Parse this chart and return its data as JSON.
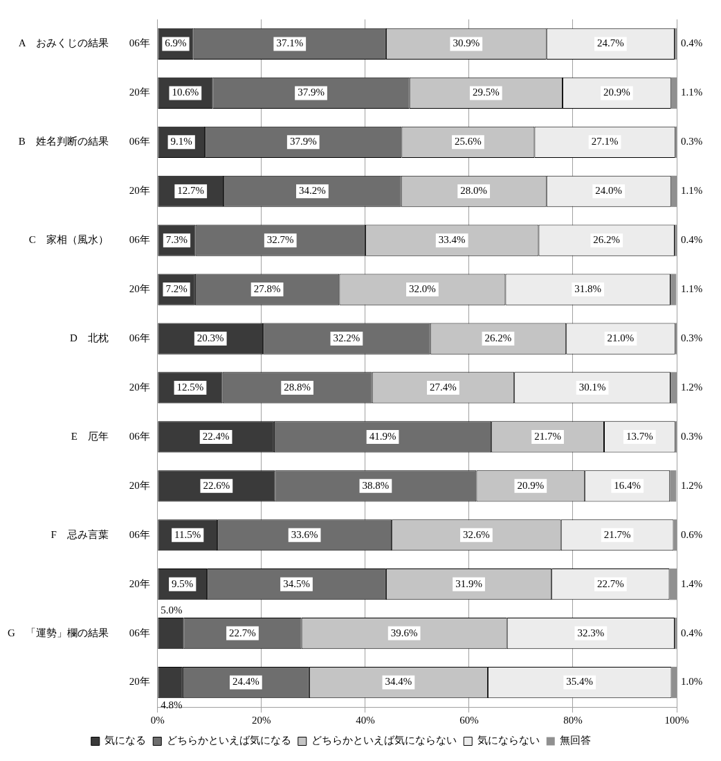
{
  "chart_data": {
    "type": "bar",
    "orientation": "horizontal",
    "stacked": true,
    "categories": [
      "A　おみくじの結果　　06年",
      "20年",
      "B　姓名判断の結果　　06年",
      "20年",
      "C　家相（風水）　　06年",
      "20年",
      "D　北枕　　06年",
      "20年",
      "E　厄年　　06年",
      "20年",
      "F　忌み言葉　　06年",
      "20年",
      "G　「運勢」欄の結果　　06年",
      "20年"
    ],
    "series": [
      {
        "name": "気になる",
        "color": "#3a3a3a",
        "values": [
          6.9,
          10.6,
          9.1,
          12.7,
          7.3,
          7.2,
          20.3,
          12.5,
          22.4,
          22.6,
          11.5,
          9.5,
          5.0,
          4.8
        ],
        "value_labels": [
          "6.9%",
          "10.6%",
          "9.1%",
          "12.7%",
          "7.3%",
          "7.2%",
          "20.3%",
          "12.5%",
          "22.4%",
          "22.6%",
          "11.5%",
          "9.5%",
          "5.0%",
          "4.8%"
        ]
      },
      {
        "name": "どちらかといえば気になる",
        "color": "#6e6e6e",
        "values": [
          37.1,
          37.9,
          37.9,
          34.2,
          32.7,
          27.8,
          32.2,
          28.8,
          41.9,
          38.8,
          33.6,
          34.5,
          22.7,
          24.4
        ],
        "value_labels": [
          "37.1%",
          "37.9%",
          "37.9%",
          "34.2%",
          "32.7%",
          "27.8%",
          "32.2%",
          "28.8%",
          "41.9%",
          "38.8%",
          "33.6%",
          "34.5%",
          "22.7%",
          "24.4%"
        ]
      },
      {
        "name": "どちらかといえば気にならない",
        "color": "#c4c4c4",
        "values": [
          30.9,
          29.5,
          25.6,
          28.0,
          33.4,
          32.0,
          26.2,
          27.4,
          21.7,
          20.9,
          32.6,
          31.9,
          39.6,
          34.4
        ],
        "value_labels": [
          "30.9%",
          "29.5%",
          "25.6%",
          "28.0%",
          "33.4%",
          "32.0%",
          "26.2%",
          "27.4%",
          "21.7%",
          "20.9%",
          "32.6%",
          "31.9%",
          "39.6%",
          "34.4%"
        ]
      },
      {
        "name": "気にならない",
        "color": "#ececec",
        "values": [
          24.7,
          20.9,
          27.1,
          24.0,
          26.2,
          31.8,
          21.0,
          30.1,
          13.7,
          16.4,
          21.7,
          22.7,
          32.3,
          35.4
        ],
        "value_labels": [
          "24.7%",
          "20.9%",
          "27.1%",
          "24.0%",
          "26.2%",
          "31.8%",
          "21.0%",
          "30.1%",
          "13.7%",
          "16.4%",
          "21.7%",
          "22.7%",
          "32.3%",
          "35.4%"
        ]
      },
      {
        "name": "無回答",
        "color": "#909090",
        "values": [
          0.4,
          1.1,
          0.3,
          1.1,
          0.4,
          1.1,
          0.3,
          1.2,
          0.3,
          1.2,
          0.6,
          1.4,
          0.4,
          1.0
        ],
        "value_labels": [
          "0.4%",
          "1.1%",
          "0.3%",
          "1.1%",
          "0.4%",
          "1.1%",
          "0.3%",
          "1.2%",
          "0.3%",
          "1.2%",
          "0.6%",
          "1.4%",
          "0.4%",
          "1.0%"
        ]
      }
    ],
    "xlim": [
      0,
      100
    ],
    "xticks": [
      {
        "value": 0,
        "label": "0%"
      },
      {
        "value": 20,
        "label": "20%"
      },
      {
        "value": 40,
        "label": "40%"
      },
      {
        "value": 60,
        "label": "60%"
      },
      {
        "value": 80,
        "label": "80%"
      },
      {
        "value": 100,
        "label": "100%"
      }
    ],
    "grid": "x",
    "legend": "bottom"
  }
}
